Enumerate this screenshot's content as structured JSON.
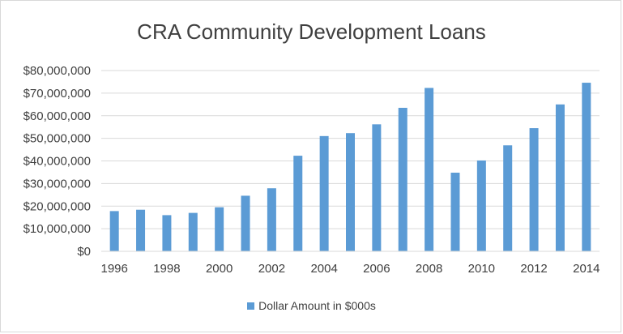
{
  "chart_data": {
    "type": "bar",
    "title": "CRA Community Development Loans",
    "xlabel": "",
    "ylabel": "",
    "categories": [
      "1996",
      "1997",
      "1998",
      "1999",
      "2000",
      "2001",
      "2002",
      "2003",
      "2004",
      "2005",
      "2006",
      "2007",
      "2008",
      "2009",
      "2010",
      "2011",
      "2012",
      "2013",
      "2014"
    ],
    "x_tick_labels": [
      "1996",
      "1998",
      "2000",
      "2002",
      "2004",
      "2006",
      "2008",
      "2010",
      "2012",
      "2014"
    ],
    "y_tick_labels": [
      "$0",
      "$10,000,000",
      "$20,000,000",
      "$30,000,000",
      "$40,000,000",
      "$50,000,000",
      "$60,000,000",
      "$70,000,000",
      "$80,000,000"
    ],
    "y_ticks": [
      0,
      10000000,
      20000000,
      30000000,
      40000000,
      50000000,
      60000000,
      70000000,
      80000000
    ],
    "ylim": [
      0,
      80000000
    ],
    "grid": true,
    "legend_position": "bottom",
    "series": [
      {
        "name": "Dollar Amount in $000s",
        "color": "#5b9bd5",
        "values": [
          17800000,
          18400000,
          16000000,
          17000000,
          19500000,
          24600000,
          27900000,
          42300000,
          51000000,
          52300000,
          56200000,
          63500000,
          72300000,
          34800000,
          40200000,
          46900000,
          54500000,
          65000000,
          74600000
        ]
      }
    ]
  }
}
